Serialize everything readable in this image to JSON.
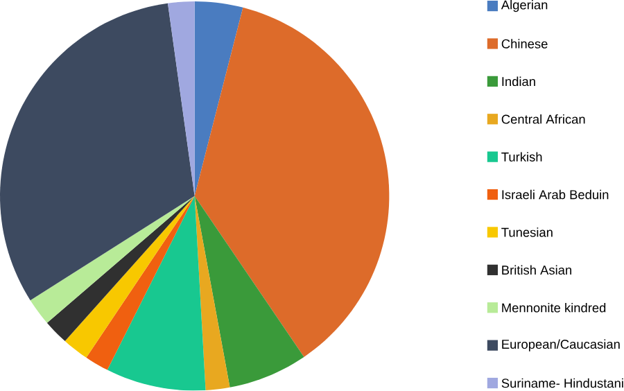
{
  "chart_data": {
    "type": "pie",
    "categories": [
      "Algerian",
      "Chinese",
      "Indian",
      "Central African",
      "Turkish",
      "Israeli Arab Beduin",
      "Tunesian",
      "British Asian",
      "Mennonite kindred",
      "European/Caucasian",
      "Suriname- Hindustani"
    ],
    "values": [
      4,
      36.5,
      6.6,
      2,
      8.3,
      2,
      2.2,
      2.1,
      2.3,
      31.8,
      2.2
    ],
    "colors": [
      "#4a7cc0",
      "#dd6b2a",
      "#3a9a3a",
      "#e8a820",
      "#18c890",
      "#f06010",
      "#f8c800",
      "#303030",
      "#b8eb98",
      "#3d4a60",
      "#a0a8e0"
    ],
    "legend": "right"
  }
}
